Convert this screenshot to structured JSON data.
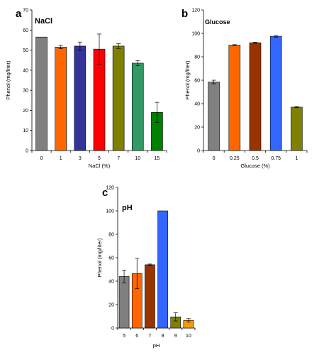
{
  "chart_data": [
    {
      "type": "bar",
      "panel_label": "a",
      "title": "NaCl",
      "xlabel": "NaCl (%)",
      "ylabel": "Phenol (mg/liter)",
      "categories": [
        "0",
        "1",
        "3",
        "5",
        "7",
        "10",
        "15"
      ],
      "values": [
        56.5,
        51.5,
        52,
        50.5,
        52,
        43.5,
        19
      ],
      "errors": [
        0,
        0.8,
        2,
        7.5,
        1.2,
        1.2,
        5
      ],
      "colors": [
        "#808080",
        "#ff6600",
        "#333399",
        "#ff0000",
        "#808000",
        "#339966",
        "#008000"
      ],
      "ylim": [
        0,
        70
      ],
      "yticks": [
        0,
        10,
        20,
        30,
        40,
        50,
        60,
        70
      ],
      "grid": false,
      "legend": "none"
    },
    {
      "type": "bar",
      "panel_label": "b",
      "title": "Glucose",
      "xlabel": "Glucose (%)",
      "ylabel": "Phenol (mg/liter)",
      "categories": [
        "0",
        "0.25",
        "0.5",
        "0.75",
        "1"
      ],
      "values": [
        58.5,
        90,
        92,
        97.5,
        37
      ],
      "errors": [
        1.5,
        0.4,
        0.4,
        0.8,
        0.5
      ],
      "colors": [
        "#808080",
        "#ff6600",
        "#993300",
        "#3366ff",
        "#808000"
      ],
      "ylim": [
        0,
        120
      ],
      "yticks": [
        0,
        20,
        40,
        60,
        80,
        100,
        120
      ],
      "grid": false,
      "legend": "none"
    },
    {
      "type": "bar",
      "panel_label": "c",
      "title": "pH",
      "xlabel": "pH",
      "ylabel": "Phenol (mg/liter)",
      "categories": [
        "5",
        "6",
        "7",
        "8",
        "9",
        "10"
      ],
      "values": [
        44,
        46.5,
        54,
        100,
        9.5,
        6.5
      ],
      "errors": [
        5.5,
        13,
        0.6,
        0,
        3.5,
        1.5
      ],
      "colors": [
        "#808080",
        "#ff6600",
        "#993300",
        "#3366ff",
        "#808000",
        "#ff9900"
      ],
      "ylim": [
        0,
        120
      ],
      "yticks": [
        0,
        20,
        40,
        60,
        80,
        100,
        120
      ],
      "grid": false,
      "legend": "none"
    }
  ]
}
